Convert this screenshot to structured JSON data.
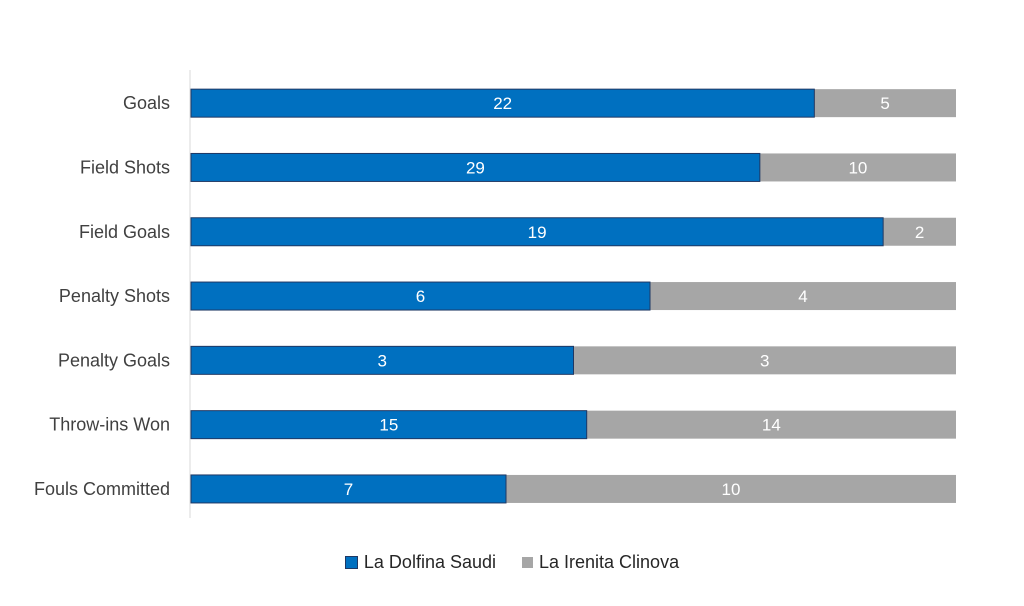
{
  "chart_data": {
    "type": "bar",
    "orientation": "horizontal",
    "stacking": "percent",
    "title": "",
    "xlabel": "",
    "ylabel": "",
    "categories": [
      "Goals",
      "Field Shots",
      "Field Goals",
      "Penalty Shots",
      "Penalty Goals",
      "Throw-ins Won",
      "Fouls Committed"
    ],
    "series": [
      {
        "name": "La Dolfina Saudi",
        "values": [
          22,
          29,
          19,
          6,
          3,
          15,
          7
        ],
        "color": "#0070C0"
      },
      {
        "name": "La Irenita Clinova",
        "values": [
          5,
          10,
          2,
          4,
          3,
          14,
          10
        ],
        "color": "#A6A6A6"
      }
    ],
    "grid": false,
    "legend": "bottom"
  }
}
